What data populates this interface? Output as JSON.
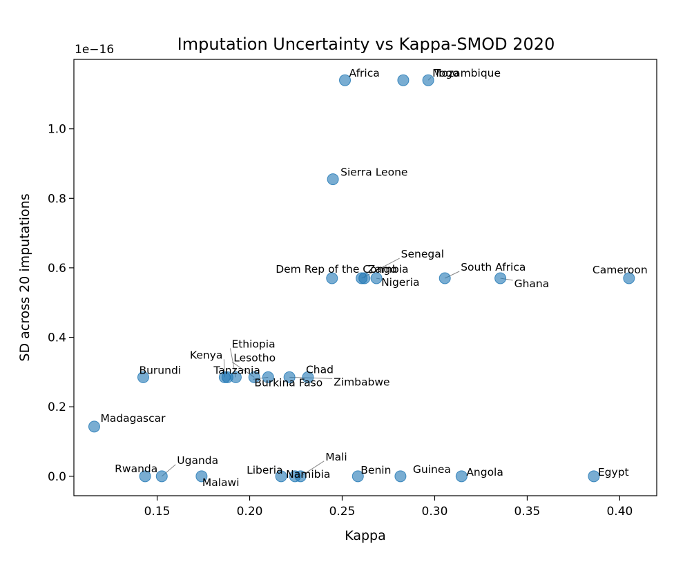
{
  "chart_data": {
    "type": "scatter",
    "title": "Imputation Uncertainty vs Kappa-SMOD 2020",
    "xlabel": "Kappa",
    "ylabel": "SD across 20 imputations",
    "y_offset_text": "1e−16",
    "xlim": [
      0.105,
      0.42
    ],
    "ylim": [
      -0.056,
      1.2
    ],
    "xticks": [
      0.15,
      0.2,
      0.25,
      0.3,
      0.35,
      0.4
    ],
    "xtick_labels": [
      "0.15",
      "0.20",
      "0.25",
      "0.30",
      "0.35",
      "0.40"
    ],
    "yticks": [
      0.0,
      0.2,
      0.4,
      0.6,
      0.8,
      1.0
    ],
    "ytick_labels": [
      "0.0",
      "0.2",
      "0.4",
      "0.6",
      "0.8",
      "1.0"
    ],
    "points": [
      {
        "label": "Africa",
        "x": 0.2515,
        "y": 1.14
      },
      {
        "label": "Mozambique",
        "x": 0.2965,
        "y": 1.14
      },
      {
        "label": "Togo",
        "x": 0.283,
        "y": 1.14
      },
      {
        "label": "Sierra Leone",
        "x": 0.245,
        "y": 0.855
      },
      {
        "label": "Dem Rep of the Congo",
        "x": 0.2445,
        "y": 0.57
      },
      {
        "label": "Senegal",
        "x": 0.2605,
        "y": 0.57
      },
      {
        "label": "Zambia",
        "x": 0.262,
        "y": 0.57
      },
      {
        "label": "Nigeria",
        "x": 0.2685,
        "y": 0.57
      },
      {
        "label": "South Africa",
        "x": 0.3055,
        "y": 0.57
      },
      {
        "label": "Ghana",
        "x": 0.3355,
        "y": 0.57
      },
      {
        "label": "Cameroon",
        "x": 0.405,
        "y": 0.57
      },
      {
        "label": "Burundi",
        "x": 0.1425,
        "y": 0.285
      },
      {
        "label": "Kenya",
        "x": 0.1865,
        "y": 0.285
      },
      {
        "label": "Tanzania",
        "x": 0.188,
        "y": 0.285
      },
      {
        "label": "Ethiopia",
        "x": 0.1925,
        "y": 0.285
      },
      {
        "label": "Lesotho",
        "x": 0.2025,
        "y": 0.285
      },
      {
        "label": "Burkina Faso",
        "x": 0.21,
        "y": 0.285
      },
      {
        "label": "Chad",
        "x": 0.2315,
        "y": 0.285
      },
      {
        "label": "Zimbabwe",
        "x": 0.2215,
        "y": 0.285
      },
      {
        "label": "Madagascar",
        "x": 0.116,
        "y": 0.143
      },
      {
        "label": "Rwanda",
        "x": 0.1435,
        "y": 0.0
      },
      {
        "label": "Uganda",
        "x": 0.1525,
        "y": 0.0
      },
      {
        "label": "Malawi",
        "x": 0.174,
        "y": 0.0
      },
      {
        "label": "Liberia",
        "x": 0.217,
        "y": 0.0
      },
      {
        "label": "Namibia",
        "x": 0.2245,
        "y": 0.0
      },
      {
        "label": "Mali",
        "x": 0.2275,
        "y": 0.0
      },
      {
        "label": "Benin",
        "x": 0.2585,
        "y": 0.0
      },
      {
        "label": "Guinea",
        "x": 0.2815,
        "y": 0.0
      },
      {
        "label": "Angola",
        "x": 0.3145,
        "y": 0.0
      },
      {
        "label": "Egypt",
        "x": 0.386,
        "y": 0.0
      }
    ]
  }
}
